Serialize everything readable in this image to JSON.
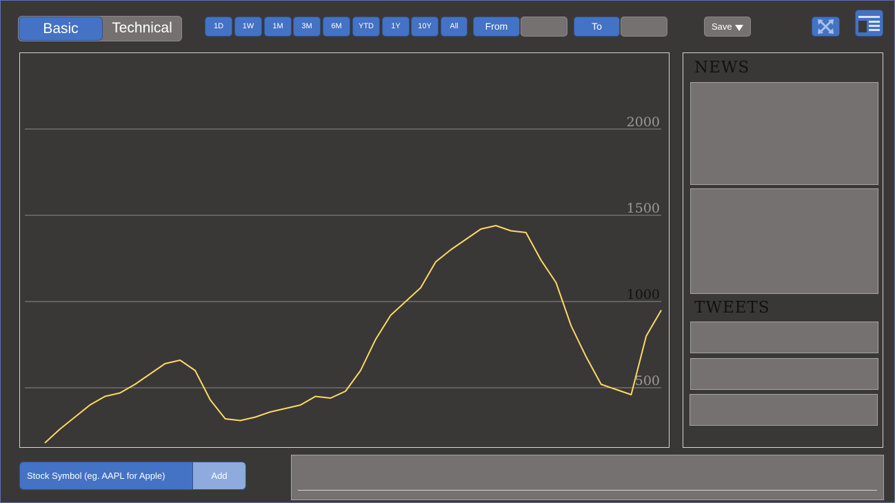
{
  "mode_toggle": {
    "basic_label": "Basic",
    "technical_label": "Technical",
    "selected": "Basic"
  },
  "range_buttons": [
    "1D",
    "1W",
    "1M",
    "3M",
    "6M",
    "YTD",
    "1Y",
    "10Y",
    "All"
  ],
  "date_range": {
    "from_label": "From",
    "from_value": "",
    "to_label": "To",
    "to_value": ""
  },
  "save_menu": {
    "label": "Save",
    "icon": "caret-down-icon"
  },
  "icons": {
    "expand": "expand-arrows-icon",
    "layout": "layout-panels-icon"
  },
  "colors": {
    "accent": "#4472c4",
    "field": "#767171",
    "background": "#3a3836",
    "line": "#ffd966"
  },
  "chart_data": {
    "type": "line",
    "y_ticks": [
      500,
      1000,
      1500,
      2000
    ],
    "ylim": [
      200,
      2400
    ],
    "series": [
      {
        "values": [
          180,
          260,
          330,
          400,
          450,
          470,
          520,
          580,
          640,
          660,
          600,
          430,
          320,
          310,
          330,
          360,
          380,
          400,
          450,
          440,
          480,
          600,
          780,
          920,
          1000,
          1080,
          1230,
          1300,
          1360,
          1420,
          1440,
          1410,
          1400,
          1240,
          1110,
          860,
          680,
          520,
          490,
          460,
          800,
          950
        ]
      }
    ]
  },
  "news": {
    "heading": "NEWS"
  },
  "tweets": {
    "heading": "TWEETS"
  },
  "symbol_input": {
    "placeholder": "Stock Symbol (eg. AAPL for Apple)",
    "add_label": "Add"
  }
}
